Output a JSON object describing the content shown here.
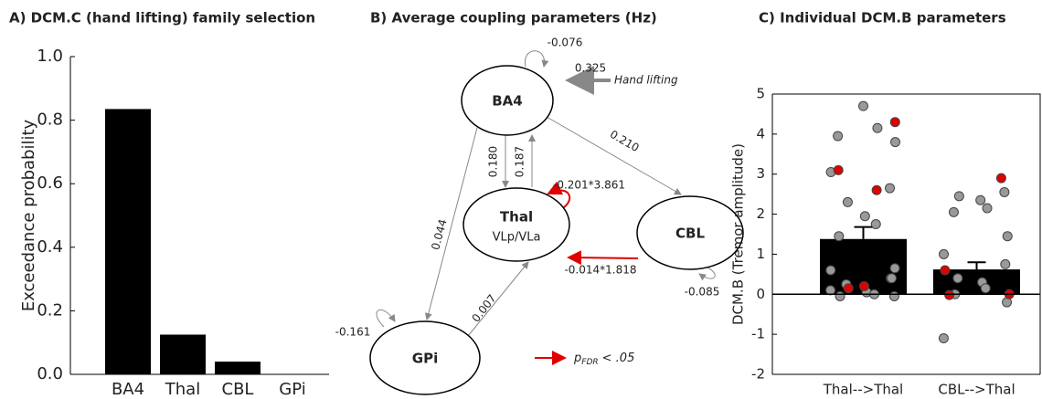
{
  "chart_data": [
    {
      "type": "bar",
      "title": "A) DCM.C (hand lifting) family selection",
      "categories": [
        "BA4",
        "Thal",
        "CBL",
        "GPi"
      ],
      "values": [
        0.835,
        0.125,
        0.04,
        0.0
      ],
      "color": "#000000",
      "ylabel": "Exceedance probability",
      "ylim": [
        0,
        1
      ],
      "yticks": [
        {
          "value": 0,
          "label": "0.0"
        },
        0.2,
        0.4,
        0.6,
        0.8,
        {
          "value": 1,
          "label": "1.0"
        }
      ]
    },
    {
      "type": "bar",
      "title": "C) Individual DCM.B parameters",
      "categories": [
        "Thal-->Thal",
        "CBL-->Thal"
      ],
      "values": [
        1.38,
        0.62
      ],
      "errors": [
        0.3,
        0.18
      ],
      "color": "#000000",
      "ylabel": "DCM.B (Tremor amplitude)",
      "ylim": [
        -2,
        5
      ],
      "yticks": [
        -2,
        -1,
        0,
        1,
        2,
        3,
        4,
        5
      ],
      "points": [
        [
          4.7,
          4.15,
          3.95,
          3.8,
          3.05,
          2.65,
          2.3,
          1.95,
          1.75,
          1.45,
          0.65,
          0.6,
          0.4,
          0.25,
          0.05,
          0,
          -0.05,
          -0.05,
          0.1,
          0.4
        ],
        [
          2.55,
          2.45,
          2.35,
          2.15,
          2.05,
          1.45,
          1.0,
          0.75,
          0.4,
          0.3,
          0.15,
          0,
          -0.2,
          -1.1
        ]
      ],
      "highlighted_points": [
        [
          4.3,
          3.1,
          2.6,
          0.2,
          0.15
        ],
        [
          2.9,
          0.6,
          0,
          -0.02
        ]
      ],
      "point_color": "#999999",
      "highlight_color": "#e00000"
    }
  ],
  "diagram": {
    "title": "B) Average coupling parameters (Hz)",
    "nodes": [
      {
        "label": "BA4"
      },
      {
        "label": "Thal",
        "sublabel": "VLp/VLa"
      },
      {
        "label": "CBL"
      },
      {
        "label": "GPi"
      }
    ],
    "edges": [
      "-0.076",
      "0.325",
      "0.210",
      "0.180",
      "0.187",
      "-0.201*3.861",
      "0.044",
      "-0.014*1.818",
      "-0.085",
      "-0.161",
      "0.007"
    ],
    "input": "Hand lifting",
    "legend": {
      "symbol": "p",
      "subscript": "FDR",
      "text": "< .05"
    }
  }
}
